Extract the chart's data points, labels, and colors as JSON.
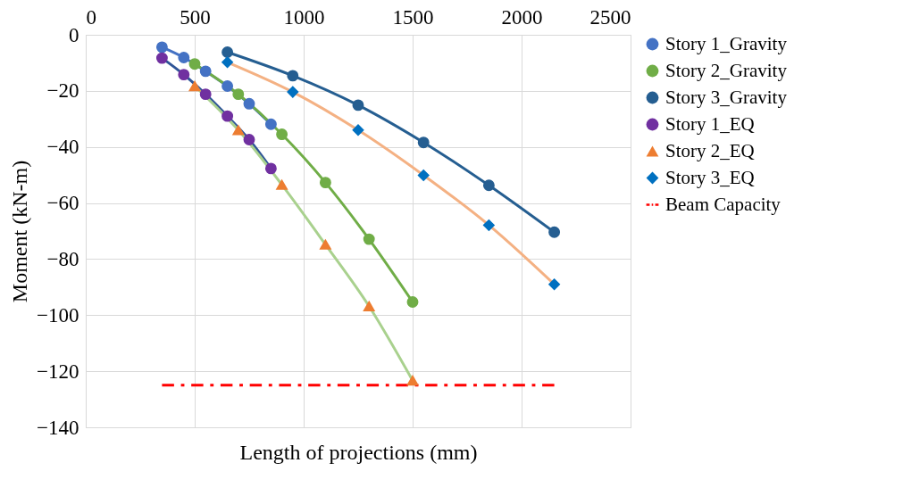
{
  "chart_data": {
    "type": "line",
    "xlabel": "Length of projections (mm)",
    "ylabel": "Moment (kN-m)",
    "xlim": [
      0,
      2500
    ],
    "xticks": [
      0,
      500,
      1000,
      1500,
      2000,
      2500
    ],
    "ylim": [
      -140,
      0
    ],
    "yticks": [
      -140,
      -120,
      -100,
      -80,
      -60,
      -40,
      -20,
      0
    ],
    "grid": true,
    "legend": "right",
    "series": [
      {
        "name": "Story 1_Gravity",
        "color": "#4472c4",
        "marker": "circle",
        "x": [
          350,
          450,
          550,
          650,
          750,
          850
        ],
        "values": [
          -4.4,
          -8.1,
          -13.0,
          -18.3,
          -24.6,
          -31.9
        ]
      },
      {
        "name": "Story 2_Gravity",
        "color": "#70ad47",
        "marker": "circle",
        "x": [
          500,
          700,
          900,
          1100,
          1300,
          1500
        ],
        "values": [
          -10.4,
          -21.2,
          -35.5,
          -52.7,
          -72.9,
          -95.3
        ]
      },
      {
        "name": "Story 3_Gravity",
        "color": "#255e91",
        "marker": "circle",
        "x": [
          650,
          950,
          1250,
          1550,
          1850,
          2150
        ],
        "values": [
          -6.2,
          -14.6,
          -25.1,
          -38.4,
          -53.7,
          -70.4
        ]
      },
      {
        "name": "Story 1_EQ",
        "color": "#2f5597",
        "colors": [
          "#7030a0",
          "#7030a0",
          "#7030a0",
          "#7030a0",
          "#7030a0",
          "#7030a0"
        ],
        "marker": "circle",
        "x": [
          350,
          450,
          550,
          650,
          750,
          850
        ],
        "values": [
          -8.3,
          -14.2,
          -21.2,
          -29.0,
          -37.4,
          -47.7
        ]
      },
      {
        "name": "Story 2_EQ",
        "color": "#a9d18e",
        "colors": [
          "#ed7d31",
          "#ed7d31",
          "#ed7d31",
          "#ed7d31",
          "#ed7d31",
          "#ed7d31"
        ],
        "marker": "triangle",
        "x": [
          500,
          700,
          900,
          1100,
          1300,
          1500
        ],
        "values": [
          -18.3,
          -34.0,
          -53.5,
          -74.8,
          -96.8,
          -123.3
        ]
      },
      {
        "name": "Story 3_EQ",
        "color": "#f4b183",
        "colors": [
          "#0070c0",
          "#0070c0",
          "#0070c0",
          "#0070c0",
          "#0070c0",
          "#0070c0"
        ],
        "marker": "diamond",
        "x": [
          650,
          950,
          1250,
          1550,
          1850,
          2150
        ],
        "values": [
          -9.8,
          -20.4,
          -34.0,
          -50.1,
          -67.9,
          -89.0
        ]
      },
      {
        "name": "Beam Capacity",
        "color": "#ff0000",
        "marker": "none",
        "line_style": "dashed",
        "x": [
          350,
          2150
        ],
        "values": [
          -125,
          -125
        ]
      }
    ]
  }
}
